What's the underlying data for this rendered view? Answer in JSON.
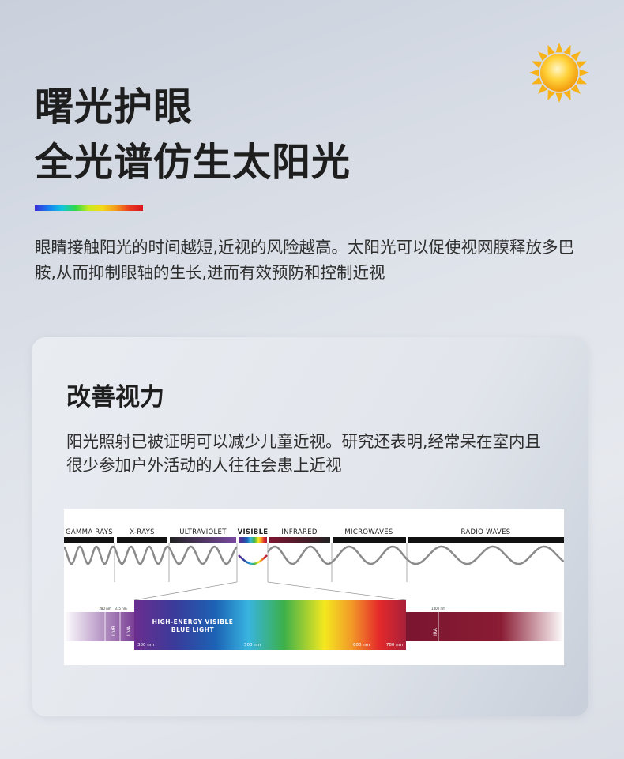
{
  "header": {
    "title_line1": "曙光护眼",
    "title_line2": "全光谱仿生太阳光",
    "intro": "眼睛接触阳光的时间越短,近视的风险越高。太阳光可以促使视网膜释放多巴胺,从而抑制眼轴的生长,进而有效预防和控制近视"
  },
  "card": {
    "title": "改善视力",
    "text": "阳光照射已被证明可以减少儿童近视。研究还表明,经常呆在室内且很少参加户外活动的人往往会患上近视"
  },
  "spectrum": {
    "bands": [
      "GAMMA RAYS",
      "X-RAYS",
      "ULTRAVIOLET",
      "VISIBLE",
      "INFRARED",
      "MICROWAVES",
      "RADIO WAVES"
    ],
    "hev_line1": "HIGH-ENERGY VISIBLE",
    "hev_line2": "BLUE LIGHT",
    "nm_380": "380 nm",
    "nm_500": "500 nm",
    "nm_600": "600 nm",
    "nm_780": "780 nm",
    "nm_280": "280 nm",
    "nm_315": "315 nm",
    "nm_1400": "1400 nm",
    "uvb": "UVB",
    "uva": "UVA",
    "ira": "IRA"
  },
  "icons": {
    "sun": "sun-icon"
  }
}
